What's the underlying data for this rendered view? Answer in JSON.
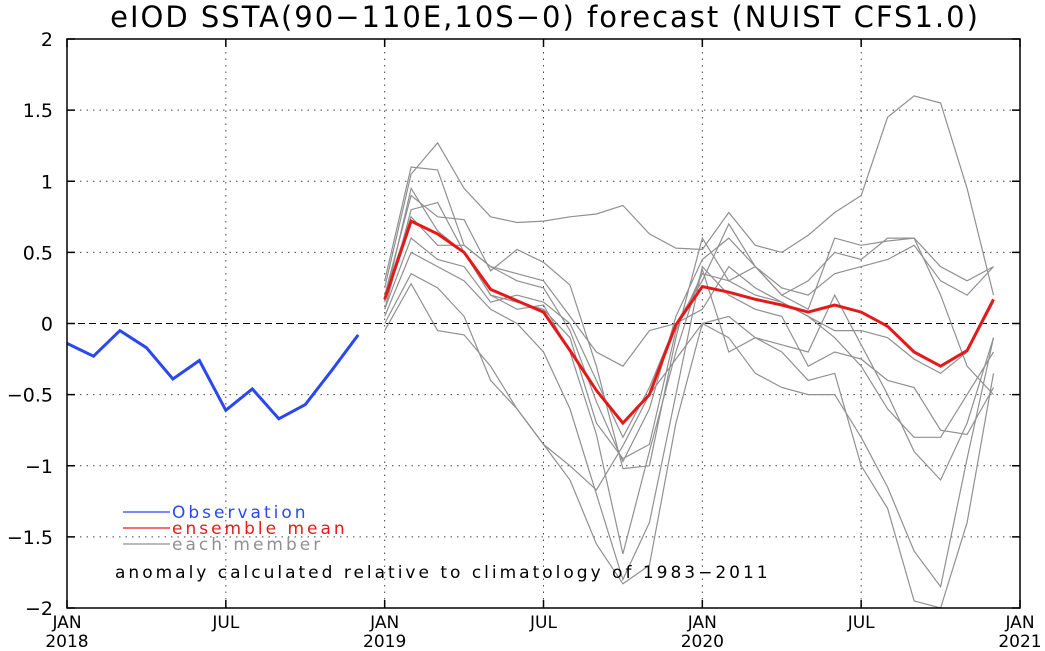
{
  "chart_data": {
    "type": "line",
    "title": "eIOD SSTA(90−110E,10S−0) forecast (NUIST CFS1.0)",
    "note": "anomaly calculated relative to climatology of 1983−2011",
    "ylim": [
      -2,
      2
    ],
    "yticks": [
      {
        "value": 2,
        "label": "2"
      },
      {
        "value": 1.5,
        "label": "1.5"
      },
      {
        "value": 1,
        "label": "1"
      },
      {
        "value": 0.5,
        "label": "0.5"
      },
      {
        "value": 0,
        "label": "0"
      },
      {
        "value": -0.5,
        "label": "−0.5"
      },
      {
        "value": -1,
        "label": "−1"
      },
      {
        "value": -1.5,
        "label": "−1.5"
      },
      {
        "value": -2,
        "label": "−2"
      }
    ],
    "xlim": [
      0,
      36
    ],
    "xticks": [
      {
        "value": 0,
        "month": "JAN",
        "year": "2018"
      },
      {
        "value": 6,
        "month": "JUL",
        "year": ""
      },
      {
        "value": 12,
        "month": "JAN",
        "year": "2019"
      },
      {
        "value": 18,
        "month": "JUL",
        "year": ""
      },
      {
        "value": 24,
        "month": "JAN",
        "year": "2020"
      },
      {
        "value": 30,
        "month": "JUL",
        "year": ""
      },
      {
        "value": 36,
        "month": "JAN",
        "year": "2021"
      }
    ],
    "legend": [
      {
        "label": "Observation",
        "color": "#2a48ee"
      },
      {
        "label": "ensemble mean",
        "color": "#e41a1a"
      },
      {
        "label": "each member",
        "color": "#909090"
      }
    ],
    "observation": {
      "color": "#2a48ee",
      "x": [
        0,
        1,
        2,
        3,
        4,
        5,
        6,
        7,
        8,
        9,
        10,
        11
      ],
      "y": [
        -0.14,
        -0.23,
        -0.05,
        -0.17,
        -0.39,
        -0.26,
        -0.61,
        -0.46,
        -0.67,
        -0.57,
        -0.33,
        -0.08
      ]
    },
    "ensemble_mean": {
      "color": "#e41a1a",
      "x": [
        12,
        13,
        14,
        15,
        16,
        17,
        18,
        19,
        20,
        21,
        22,
        23,
        24,
        25,
        26,
        27,
        28,
        29,
        30,
        31,
        32,
        33,
        34,
        35
      ],
      "y": [
        0.17,
        0.72,
        0.63,
        0.5,
        0.24,
        0.16,
        0.08,
        -0.19,
        -0.47,
        -0.7,
        -0.5,
        -0.01,
        0.26,
        0.22,
        0.17,
        0.13,
        0.08,
        0.13,
        0.08,
        -0.02,
        -0.2,
        -0.3,
        -0.19,
        0.17
      ]
    },
    "members": {
      "color": "#909090",
      "x": [
        12,
        13,
        14,
        15,
        16,
        17,
        18,
        19,
        20,
        21,
        22,
        23,
        24,
        25,
        26,
        27,
        28,
        29,
        30,
        31,
        32,
        33,
        34,
        35
      ],
      "series": [
        {
          "values": [
            0.3,
            1.1,
            1.08,
            0.55,
            0.4,
            0.3,
            0.25,
            -0.05,
            -0.55,
            -0.97,
            -0.6,
            0.05,
            0.45,
            0.6,
            0.4,
            0.25,
            0.2,
            0.35,
            0.4,
            0.45,
            0.55,
            0.3,
            0.2,
            0.4
          ]
        },
        {
          "values": [
            0.25,
            1.05,
            1.27,
            0.95,
            0.75,
            0.71,
            0.72,
            0.75,
            0.77,
            0.83,
            0.63,
            0.53,
            0.52,
            0.78,
            0.55,
            0.5,
            0.62,
            0.78,
            0.9,
            1.45,
            1.6,
            1.55,
            0.95,
            0.2
          ]
        },
        {
          "values": [
            0.2,
            0.9,
            0.75,
            0.73,
            0.37,
            0.52,
            0.43,
            0.27,
            -0.3,
            -1.02,
            -1.0,
            -0.1,
            0.6,
            0.3,
            0.4,
            0.2,
            0.3,
            0.5,
            0.45,
            0.6,
            0.6,
            0.4,
            0.3,
            0.4
          ]
        },
        {
          "values": [
            0.1,
            0.6,
            0.45,
            0.4,
            0.15,
            0.2,
            0.15,
            0.0,
            -0.4,
            -0.8,
            -0.45,
            0.0,
            0.3,
            0.7,
            0.4,
            0.2,
            0.1,
            0.6,
            0.55,
            0.58,
            0.6,
            0.2,
            -0.3,
            -0.5
          ]
        },
        {
          "values": [
            0.1,
            0.8,
            0.85,
            0.5,
            0.2,
            0.1,
            0.13,
            -0.2,
            -0.78,
            -1.62,
            -0.9,
            -0.2,
            0.38,
            -0.2,
            -0.1,
            -0.15,
            -0.2,
            0.2,
            -0.15,
            -0.5,
            -0.9,
            -1.1,
            -0.7,
            -0.1
          ]
        },
        {
          "values": [
            0.05,
            0.5,
            0.4,
            0.3,
            0.1,
            0.0,
            -0.2,
            -0.6,
            -1.2,
            -1.8,
            -1.4,
            -0.5,
            0.4,
            0.2,
            0.1,
            0.05,
            -0.3,
            -0.2,
            -0.25,
            -0.4,
            -0.45,
            -0.75,
            -0.78,
            -0.45
          ]
        },
        {
          "values": [
            0.0,
            0.35,
            0.25,
            0.05,
            -0.4,
            -0.6,
            -0.85,
            -1.1,
            -1.55,
            -1.83,
            -1.7,
            -0.7,
            0.0,
            -0.1,
            -0.35,
            -0.45,
            -0.5,
            -0.5,
            -0.8,
            -1.15,
            -1.6,
            -1.85,
            -0.95,
            -0.1
          ]
        },
        {
          "values": [
            -0.05,
            0.28,
            -0.05,
            -0.08,
            -0.3,
            -0.6,
            -0.85,
            -1.0,
            -1.17,
            -0.86,
            -0.5,
            -0.25,
            0.0,
            0.05,
            -0.1,
            -0.2,
            -0.4,
            -0.35,
            -1.0,
            -1.3,
            -1.95,
            -2.0,
            -1.4,
            -0.35
          ]
        },
        {
          "values": [
            0.2,
            0.75,
            0.55,
            0.55,
            0.4,
            0.35,
            0.3,
            0.05,
            -0.2,
            -0.3,
            -0.05,
            0.0,
            0.1,
            0.4,
            0.25,
            0.15,
            0.05,
            -0.1,
            -0.3,
            -0.6,
            -0.8,
            -0.8,
            -0.5,
            -0.2
          ]
        },
        {
          "values": [
            0.15,
            0.95,
            0.65,
            0.5,
            0.2,
            0.15,
            0.1,
            -0.1,
            -0.7,
            -0.95,
            -0.85,
            -0.05,
            0.35,
            0.3,
            0.2,
            0.15,
            0.05,
            -0.05,
            -0.05,
            -0.1,
            -0.25,
            -0.35,
            -0.2,
            0.15
          ]
        }
      ]
    }
  }
}
